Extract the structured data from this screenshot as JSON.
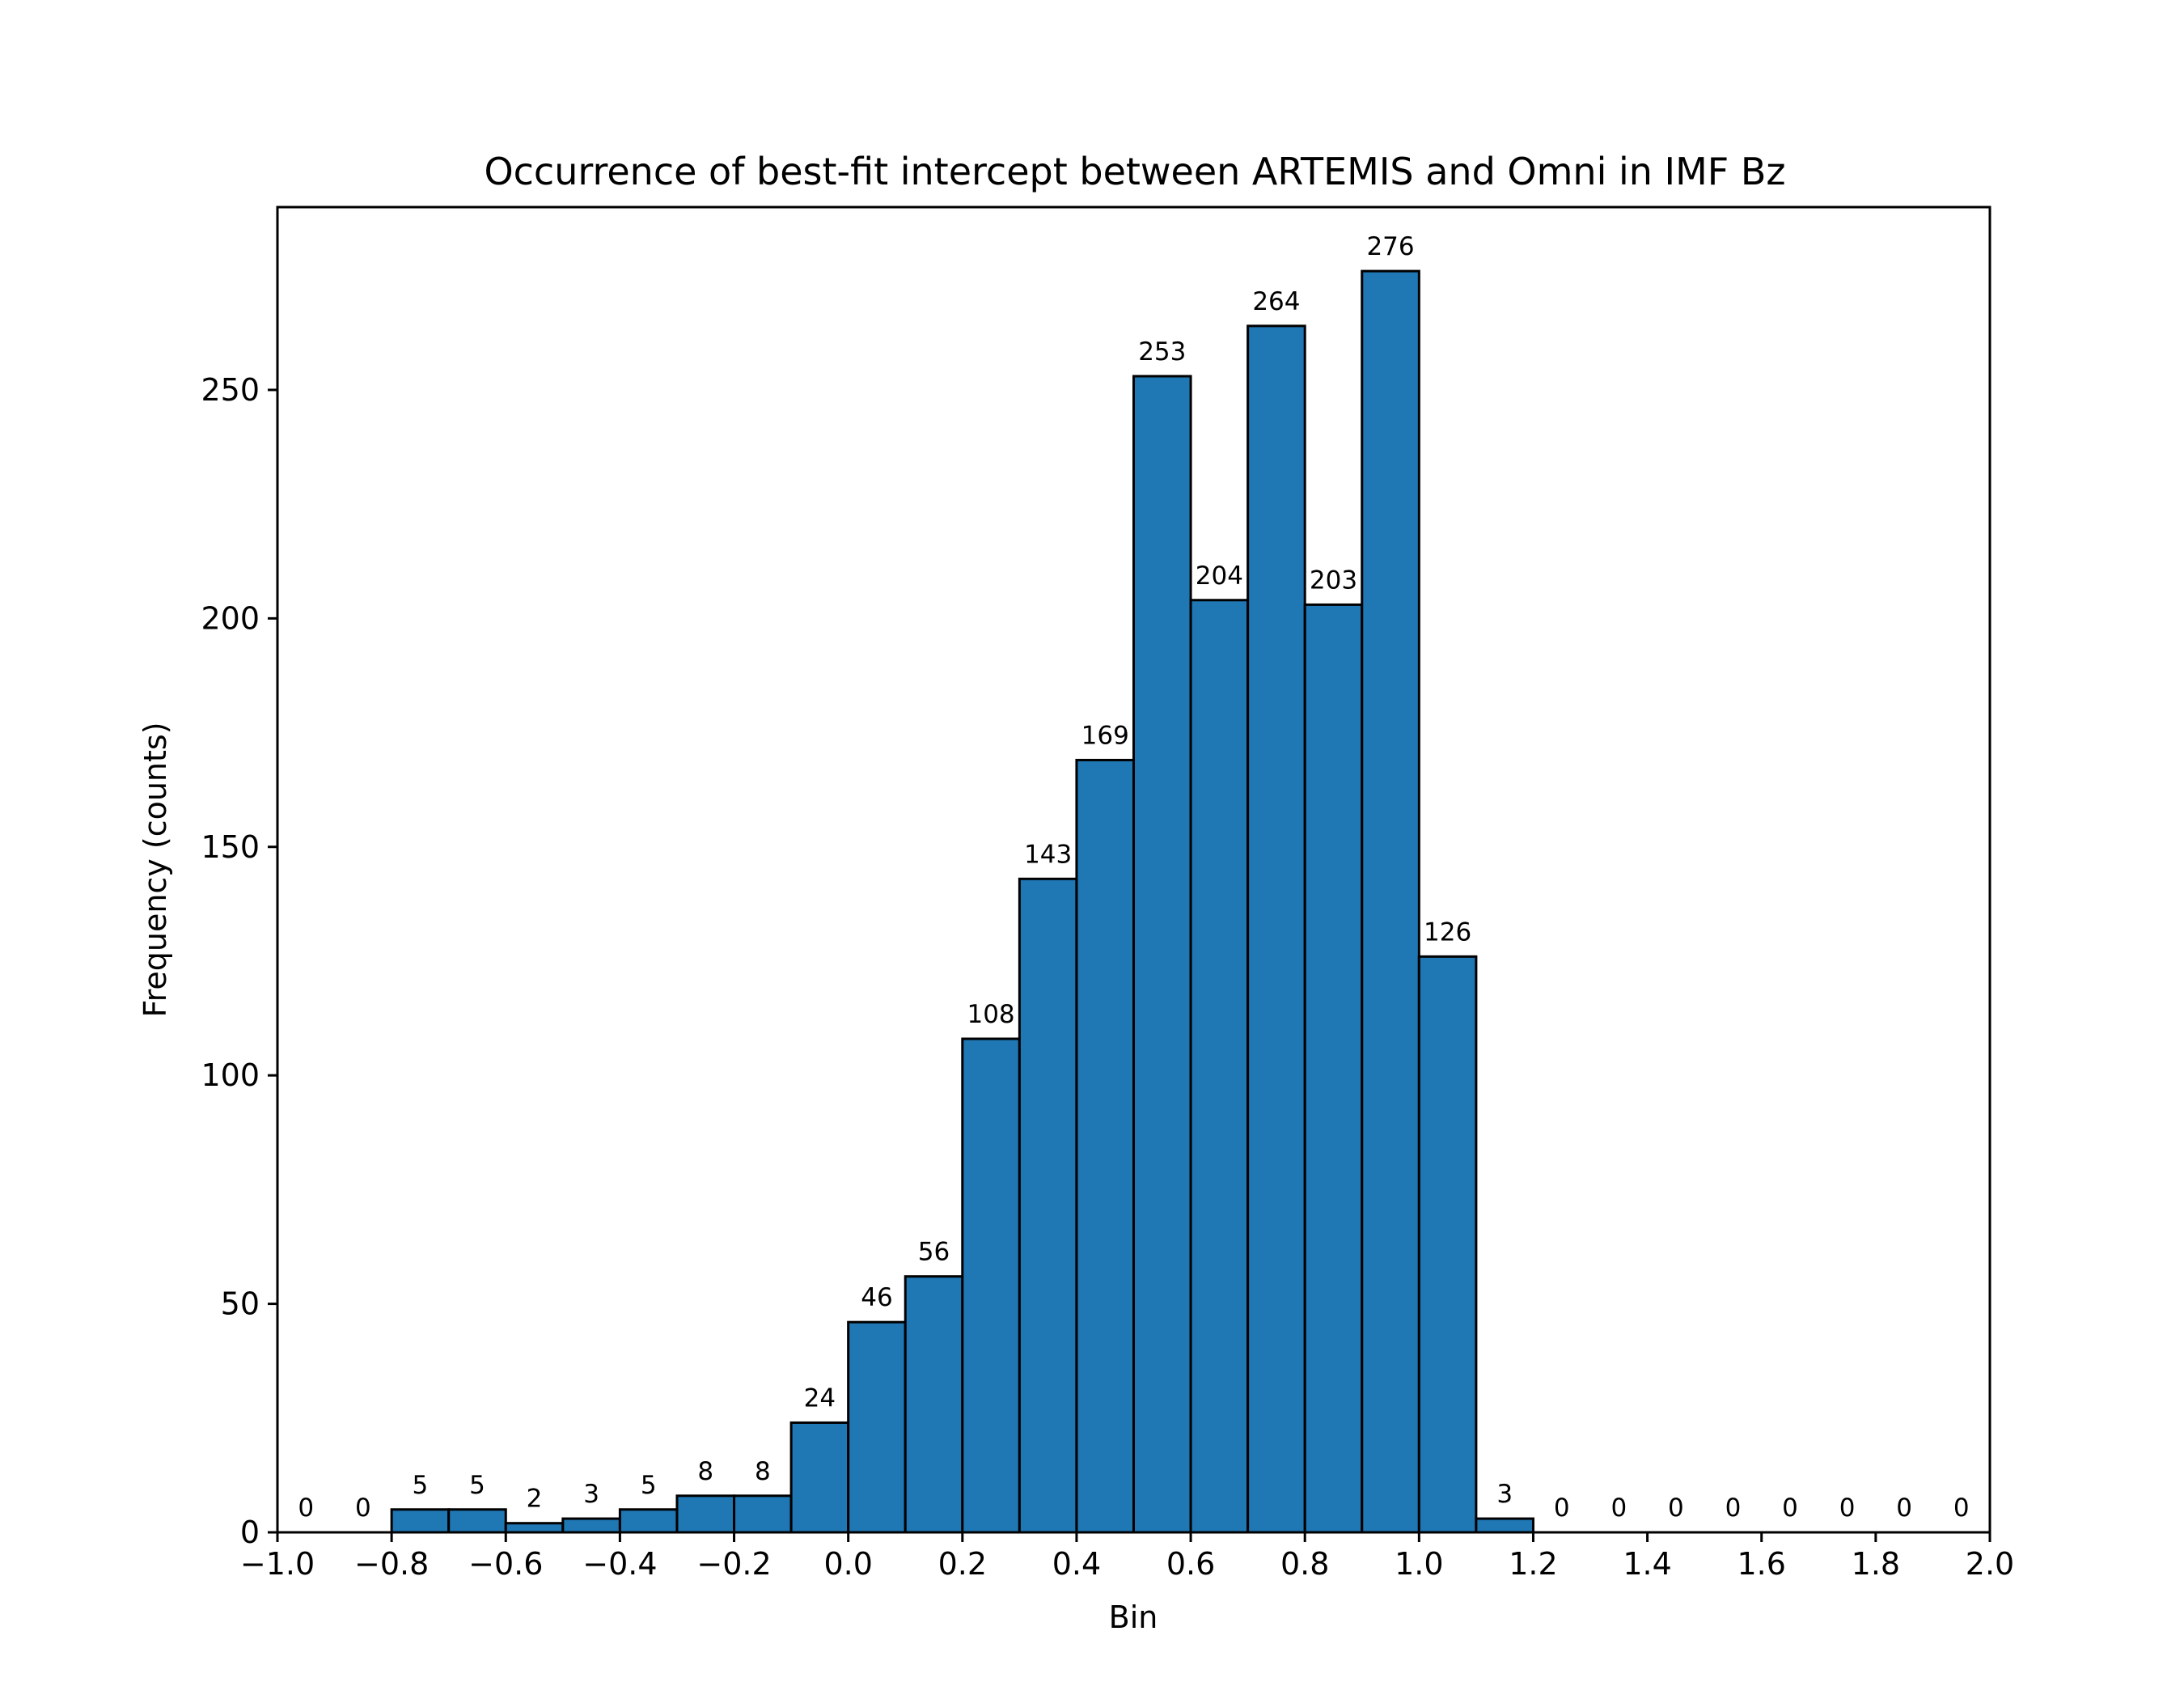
{
  "chart_data": {
    "type": "bar",
    "title": "Occurrence of best-fit intercept between ARTEMIS and Omni in IMF Bz",
    "xlabel": "Bin",
    "ylabel": "Frequency (counts)",
    "xlim": [
      -1.0,
      2.0
    ],
    "ylim": [
      0,
      290
    ],
    "bin_width": 0.1,
    "bin_edges": [
      -1.0,
      -0.9,
      -0.8,
      -0.7,
      -0.6,
      -0.5,
      -0.4,
      -0.3,
      -0.2,
      -0.1,
      0.0,
      0.1,
      0.2,
      0.3,
      0.4,
      0.5,
      0.6,
      0.7,
      0.8,
      0.9,
      1.0,
      1.1,
      1.2,
      1.3,
      1.4,
      1.5,
      1.6,
      1.7,
      1.8,
      1.9,
      2.0
    ],
    "values": [
      0,
      0,
      5,
      5,
      2,
      3,
      5,
      8,
      8,
      24,
      46,
      56,
      108,
      143,
      169,
      253,
      204,
      264,
      203,
      276,
      126,
      3,
      0,
      0,
      0,
      0,
      0,
      0,
      0,
      0
    ],
    "x_ticks": [
      -1.0,
      -0.8,
      -0.6,
      -0.4,
      -0.2,
      0.0,
      0.2,
      0.4,
      0.6,
      0.8,
      1.0,
      1.2,
      1.4,
      1.6,
      1.8,
      2.0
    ],
    "x_tick_labels": [
      "−1.0",
      "−0.8",
      "−0.6",
      "−0.4",
      "−0.2",
      "0.0",
      "0.2",
      "0.4",
      "0.6",
      "0.8",
      "1.0",
      "1.2",
      "1.4",
      "1.6",
      "1.8",
      "2.0"
    ],
    "y_ticks": [
      0,
      50,
      100,
      150,
      200,
      250
    ],
    "y_tick_labels": [
      "0",
      "50",
      "100",
      "150",
      "200",
      "250"
    ],
    "grid": false,
    "bar_color": "#1f77b4",
    "edge_color": "#000000"
  }
}
